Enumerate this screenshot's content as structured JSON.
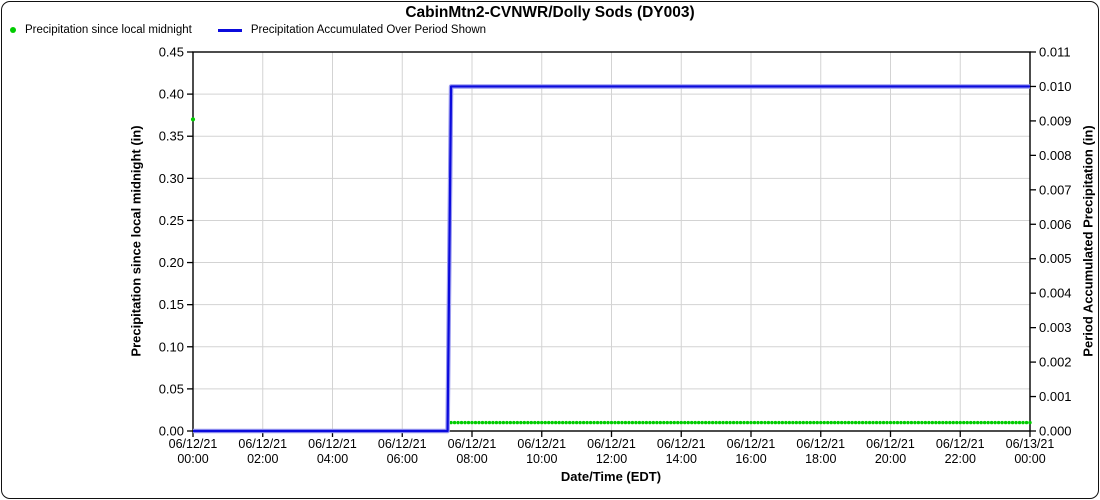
{
  "window": {
    "background": "#ffffff",
    "border_color": "#111111"
  },
  "title": "CabinMtn2-CVNWR/Dolly Sods (DY003)",
  "legend": {
    "items": [
      {
        "label": "Precipitation since local midnight",
        "marker": "dot",
        "color": "#00cc00"
      },
      {
        "label": "Precipitation Accumulated Over Period Shown",
        "marker": "line",
        "color": "#0b0bdc"
      }
    ]
  },
  "chart_data": {
    "type": "line",
    "title": "CabinMtn2-CVNWR/Dolly Sods (DY003)",
    "xlabel": "Date/Time (EDT)",
    "ylabel_left": "Precipitation since local midnight (in)",
    "ylabel_right": "Period Accumulated Precipitation (in)",
    "grid": true,
    "grid_color": "#d3d3d3",
    "axis_color": "#000000",
    "x_axis": {
      "range_minutes": [
        0,
        1440
      ],
      "tick_interval_hours": 2,
      "tick_labels": [
        {
          "date": "06/12/21",
          "time": "00:00"
        },
        {
          "date": "06/12/21",
          "time": "02:00"
        },
        {
          "date": "06/12/21",
          "time": "04:00"
        },
        {
          "date": "06/12/21",
          "time": "06:00"
        },
        {
          "date": "06/12/21",
          "time": "08:00"
        },
        {
          "date": "06/12/21",
          "time": "10:00"
        },
        {
          "date": "06/12/21",
          "time": "12:00"
        },
        {
          "date": "06/12/21",
          "time": "14:00"
        },
        {
          "date": "06/12/21",
          "time": "16:00"
        },
        {
          "date": "06/12/21",
          "time": "18:00"
        },
        {
          "date": "06/12/21",
          "time": "20:00"
        },
        {
          "date": "06/12/21",
          "time": "22:00"
        },
        {
          "date": "06/13/21",
          "time": "00:00"
        }
      ]
    },
    "left_axis": {
      "min": 0.0,
      "max": 0.45,
      "step": 0.05,
      "tick_labels": [
        "0.00",
        "0.05",
        "0.10",
        "0.15",
        "0.20",
        "0.25",
        "0.30",
        "0.35",
        "0.40",
        "0.45"
      ]
    },
    "right_axis": {
      "min": 0.0,
      "max": 0.011,
      "step": 0.001,
      "tick_labels": [
        "0.000",
        "0.001",
        "0.002",
        "0.003",
        "0.004",
        "0.005",
        "0.006",
        "0.007",
        "0.008",
        "0.009",
        "0.010",
        "0.011"
      ]
    },
    "series": [
      {
        "name": "Precipitation since local midnight",
        "axis": "left",
        "style": "scatter",
        "color": "#00cc00",
        "sample_interval_minutes": 6,
        "segments": [
          {
            "start_minute": 0,
            "end_minute": 0,
            "value": 0.37
          },
          {
            "start_minute": 6,
            "end_minute": 438,
            "value": 0.0
          },
          {
            "start_minute": 444,
            "end_minute": 1440,
            "value": 0.01
          }
        ]
      },
      {
        "name": "Precipitation Accumulated Over Period Shown",
        "axis": "right",
        "style": "line",
        "color": "#0b0bdc",
        "halo_color": "#9b9bf0",
        "points": [
          {
            "minute": 0,
            "value": 0.0
          },
          {
            "minute": 438,
            "value": 0.0
          },
          {
            "minute": 444,
            "value": 0.01
          },
          {
            "minute": 1440,
            "value": 0.01
          }
        ]
      }
    ]
  }
}
